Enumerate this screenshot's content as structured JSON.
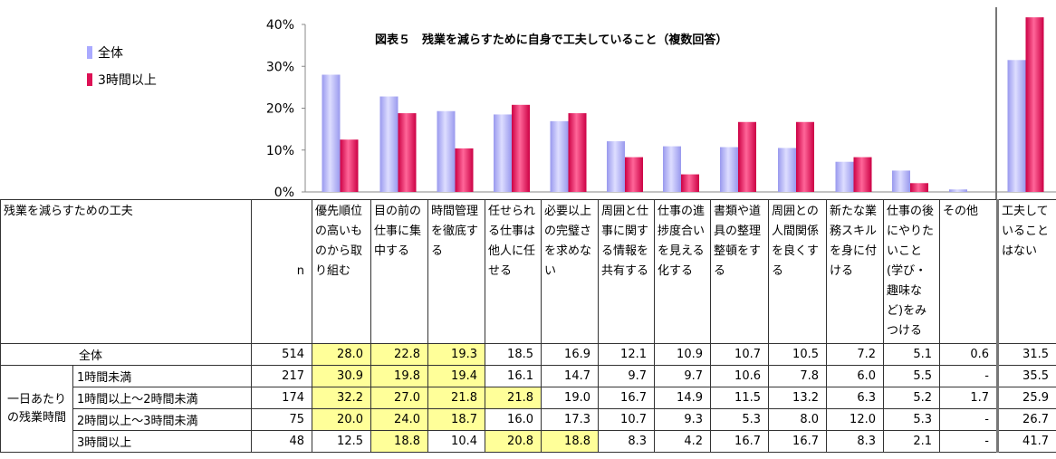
{
  "chart_data": {
    "type": "bar",
    "title": "図表５　残業を減らすために自身で工夫していること（複数回答）",
    "ylim": [
      0,
      40
    ],
    "yticks": [
      "0%",
      "10%",
      "20%",
      "30%",
      "40%"
    ],
    "legend_position": "top-left",
    "categories": [
      "優先順位の高いものから取り組む",
      "目の前の仕事に集中する",
      "時間管理を徹底する",
      "任せられる仕事は他人に任せる",
      "必要以上の完璧さを求めない",
      "周囲と仕事に関する情報を共有する",
      "仕事の進捗度合いを見える化する",
      "書類や道具の整理整頓をする",
      "周囲との人間関係を良くする",
      "新たな業務スキルを身に付ける",
      "仕事の後にやりたいこと（学び・趣味など)をみつける",
      "その他",
      "工夫していることはない"
    ],
    "series": [
      {
        "name": "全体",
        "color": "#aaaaff",
        "values": [
          28.0,
          22.8,
          19.3,
          18.5,
          16.9,
          12.1,
          10.9,
          10.7,
          10.5,
          7.2,
          5.1,
          0.6,
          31.5
        ]
      },
      {
        "name": "3時間以上",
        "color": "#dd1155",
        "values": [
          12.5,
          18.8,
          10.4,
          20.8,
          18.8,
          8.3,
          4.2,
          16.7,
          16.7,
          8.3,
          2.1,
          null,
          41.7
        ]
      }
    ]
  },
  "table": {
    "header_label": "残業を減らすための工夫",
    "n_label": "n",
    "columns": [
      "優先順位の高いものから取り組む",
      "目の前の仕事に集中する",
      "時間管理を徹底する",
      "任せられる仕事は他人に任せる",
      "必要以上の完璧さを求めない",
      "周囲と仕事に関する情報を共有する",
      "仕事の進捗度合いを見える化する",
      "書類や道具の整理整頓をする",
      "周囲との人間関係を良くする",
      "新たな業務スキルを身に付ける",
      "仕事の後にやりたいこと(学び・趣味など)をみつける",
      "その他",
      "工夫していることはない"
    ],
    "group_label": "一日あたりの残業時間",
    "rows": [
      {
        "label": "全体",
        "n": "514",
        "values": [
          "28.0",
          "22.8",
          "19.3",
          "18.5",
          "16.9",
          "12.1",
          "10.9",
          "10.7",
          "10.5",
          "7.2",
          "5.1",
          "0.6",
          "31.5"
        ],
        "highlight": [
          0,
          1,
          2
        ]
      },
      {
        "label": "1時間未満",
        "n": "217",
        "values": [
          "30.9",
          "19.8",
          "19.4",
          "16.1",
          "14.7",
          "9.7",
          "9.7",
          "10.6",
          "7.8",
          "6.0",
          "5.5",
          "-",
          "35.5"
        ],
        "highlight": [
          0,
          1,
          2
        ]
      },
      {
        "label": "1時間以上～2時間未満",
        "n": "174",
        "values": [
          "32.2",
          "27.0",
          "21.8",
          "21.8",
          "19.0",
          "16.7",
          "14.9",
          "11.5",
          "13.2",
          "6.3",
          "5.2",
          "1.7",
          "25.9"
        ],
        "highlight": [
          0,
          1,
          2,
          3
        ]
      },
      {
        "label": "2時間以上～3時間未満",
        "n": "75",
        "values": [
          "20.0",
          "24.0",
          "18.7",
          "16.0",
          "17.3",
          "10.7",
          "9.3",
          "5.3",
          "8.0",
          "12.0",
          "5.3",
          "-",
          "26.7"
        ],
        "highlight": [
          0,
          1,
          2
        ]
      },
      {
        "label": "3時間以上",
        "n": "48",
        "values": [
          "12.5",
          "18.8",
          "10.4",
          "20.8",
          "18.8",
          "8.3",
          "4.2",
          "16.7",
          "16.7",
          "8.3",
          "2.1",
          "-",
          "41.7"
        ],
        "highlight": [
          1,
          3,
          4
        ]
      }
    ]
  }
}
